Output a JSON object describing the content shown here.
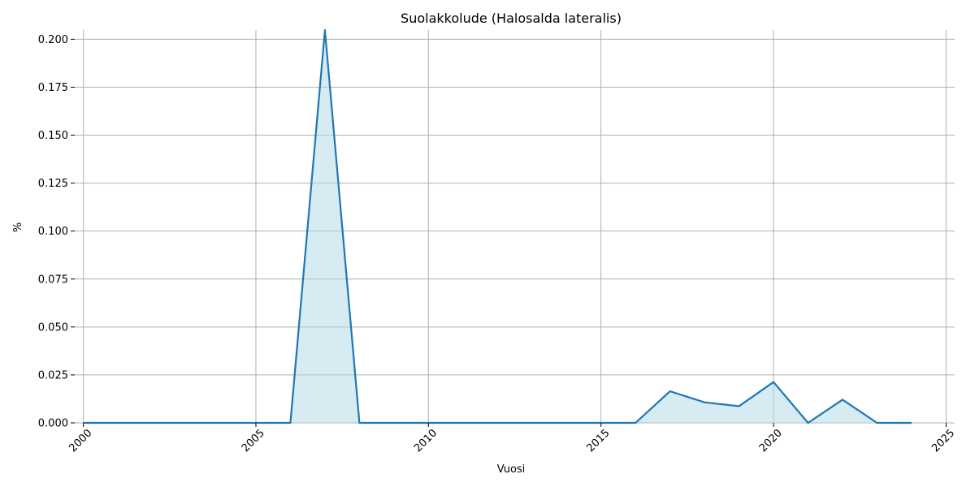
{
  "chart_data": {
    "type": "area",
    "title": "Suolakkolude (Halosalda lateralis)",
    "xlabel": "Vuosi",
    "ylabel": "%",
    "xlim": [
      1999.75,
      2025.25
    ],
    "ylim": [
      0,
      0.2048
    ],
    "x_ticks": [
      2000,
      2005,
      2010,
      2015,
      2020,
      2025
    ],
    "y_ticks": [
      0.0,
      0.025,
      0.05,
      0.075,
      0.1,
      0.125,
      0.15,
      0.175,
      0.2
    ],
    "y_tick_labels": [
      "0.000",
      "0.025",
      "0.050",
      "0.075",
      "0.100",
      "0.125",
      "0.150",
      "0.175",
      "0.200"
    ],
    "grid": true,
    "line_color": "#1f77b4",
    "fill_color": "#add8e6",
    "x": [
      2000,
      2001,
      2002,
      2003,
      2004,
      2005,
      2006,
      2007,
      2008,
      2009,
      2010,
      2011,
      2012,
      2013,
      2014,
      2015,
      2016,
      2017,
      2018,
      2019,
      2020,
      2021,
      2022,
      2023,
      2024
    ],
    "values": [
      0,
      0,
      0,
      0,
      0,
      0,
      0,
      0.2048,
      0,
      0,
      0,
      0,
      0,
      0,
      0,
      0,
      0,
      0.0165,
      0.0107,
      0.0087,
      0.0213,
      0,
      0.0121,
      0,
      0
    ]
  }
}
